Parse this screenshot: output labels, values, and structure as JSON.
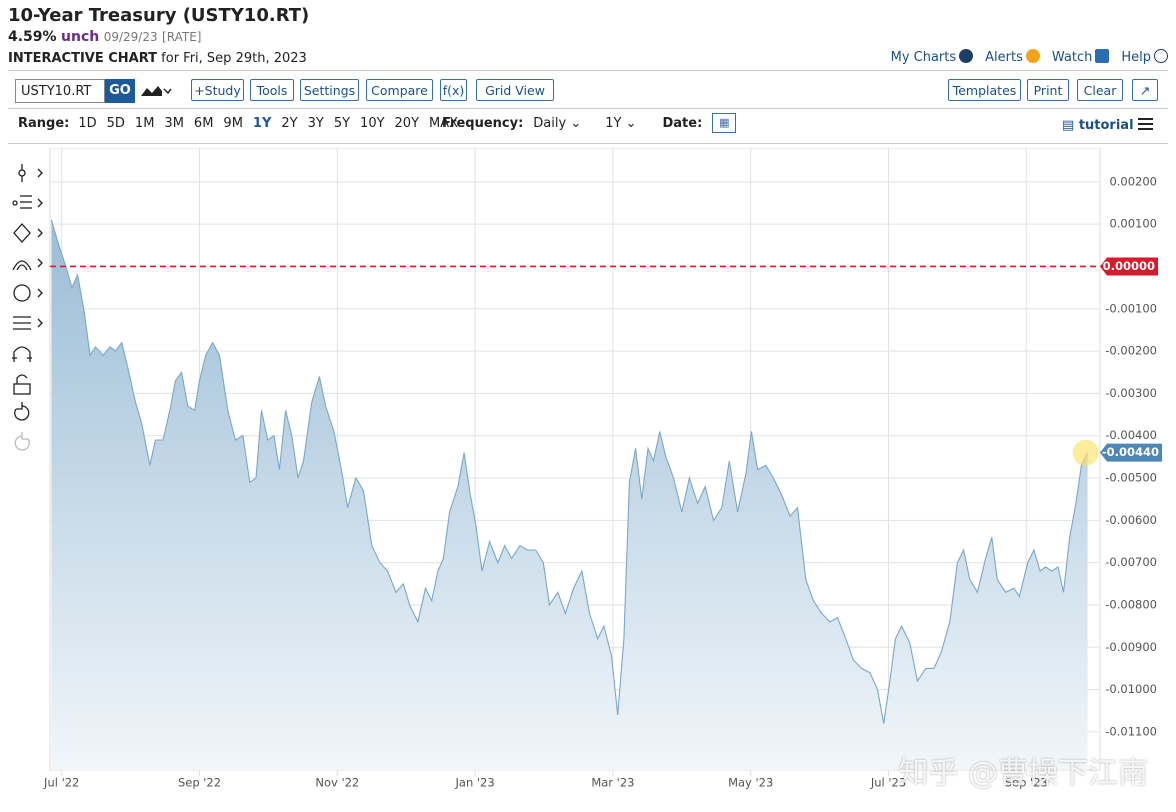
{
  "header": {
    "title": "10-Year Treasury (USTY10.RT)",
    "price": "4.59%",
    "change": "unch",
    "date": "09/29/23",
    "source": "[RATE]",
    "chart_label": "INTERACTIVE CHART",
    "for_date": "for Fri, Sep 29th, 2023",
    "links": [
      "My Charts",
      "Alerts",
      "Watch",
      "Help"
    ]
  },
  "toolbar": {
    "symbol": "USTY10.RT",
    "go": "GO",
    "buttons": [
      "+Study",
      "Tools",
      "Settings",
      "Compare",
      "f(x)",
      "Grid View"
    ],
    "right_buttons": [
      "Templates",
      "Print",
      "Clear"
    ],
    "range_label": "Range:",
    "ranges": [
      "1D",
      "5D",
      "1M",
      "3M",
      "6M",
      "9M",
      "1Y",
      "2Y",
      "3Y",
      "5Y",
      "10Y",
      "20Y",
      "MAX"
    ],
    "frequency_label": "Frequency:",
    "frequency": "Daily",
    "period": "1Y",
    "date_label": "Date:",
    "tutorial": "tutorial"
  },
  "watermark": "知乎 @曹操下江南",
  "chart_data": {
    "type": "area",
    "color": "#7aa7c9",
    "grid": true,
    "xlim": [
      -0.17,
      15.07
    ],
    "ylim": [
      -0.0119,
      0.0028
    ],
    "xticks": [
      {
        "value": 0,
        "label": "Jul '22"
      },
      {
        "value": 2,
        "label": "Sep '22"
      },
      {
        "value": 4,
        "label": "Nov '22"
      },
      {
        "value": 6,
        "label": "Jan '23"
      },
      {
        "value": 8,
        "label": "Mar '23"
      },
      {
        "value": 10,
        "label": "May '23"
      },
      {
        "value": 12,
        "label": "Jul '23"
      },
      {
        "value": 14,
        "label": "Sep '23"
      }
    ],
    "yticks": [
      {
        "value": 0.002,
        "label": "0.00200"
      },
      {
        "value": 0.001,
        "label": "0.00100"
      },
      {
        "value": -0.001,
        "label": "-0.00100"
      },
      {
        "value": -0.002,
        "label": "-0.00200"
      },
      {
        "value": -0.003,
        "label": "-0.00300"
      },
      {
        "value": -0.004,
        "label": "-0.00400"
      },
      {
        "value": -0.005,
        "label": "-0.00500"
      },
      {
        "value": -0.006,
        "label": "-0.00600"
      },
      {
        "value": -0.007,
        "label": "-0.00700"
      },
      {
        "value": -0.008,
        "label": "-0.00800"
      },
      {
        "value": -0.009,
        "label": "-0.00900"
      },
      {
        "value": -0.01,
        "label": "-0.01000"
      },
      {
        "value": -0.011,
        "label": "-0.01100"
      }
    ],
    "reference_line": {
      "value": 0,
      "label": "0.00000"
    },
    "last_label": {
      "value": -0.0044,
      "label": "-0.00440"
    },
    "x": [
      -0.15,
      -0.06,
      0.06,
      0.15,
      0.23,
      0.33,
      0.41,
      0.49,
      0.6,
      0.7,
      0.78,
      0.87,
      0.96,
      1.07,
      1.16,
      1.28,
      1.36,
      1.47,
      1.57,
      1.65,
      1.74,
      1.83,
      1.93,
      2.0,
      2.09,
      2.19,
      2.29,
      2.41,
      2.52,
      2.63,
      2.73,
      2.82,
      2.9,
      2.99,
      3.08,
      3.16,
      3.25,
      3.34,
      3.43,
      3.51,
      3.63,
      3.74,
      3.83,
      3.95,
      4.06,
      4.15,
      4.27,
      4.38,
      4.5,
      4.62,
      4.73,
      4.85,
      4.96,
      5.05,
      5.17,
      5.28,
      5.37,
      5.46,
      5.54,
      5.63,
      5.75,
      5.84,
      5.92,
      6.01,
      6.1,
      6.21,
      6.33,
      6.43,
      6.53,
      6.65,
      6.76,
      6.88,
      6.99,
      7.08,
      7.2,
      7.31,
      7.43,
      7.55,
      7.66,
      7.78,
      7.87,
      7.98,
      8.07,
      8.16,
      8.24,
      8.33,
      8.42,
      8.51,
      8.59,
      8.68,
      8.77,
      8.88,
      9.0,
      9.11,
      9.23,
      9.34,
      9.46,
      9.58,
      9.69,
      9.81,
      9.93,
      10.01,
      10.1,
      10.22,
      10.33,
      10.45,
      10.57,
      10.68,
      10.8,
      10.91,
      11.03,
      11.15,
      11.26,
      11.38,
      11.49,
      11.61,
      11.73,
      11.84,
      11.93,
      12.02,
      12.1,
      12.19,
      12.31,
      12.42,
      12.54,
      12.66,
      12.77,
      12.89,
      13.0,
      13.09,
      13.18,
      13.29,
      13.41,
      13.5,
      13.58,
      13.7,
      13.82,
      13.9,
      14.02,
      14.11,
      14.2,
      14.28,
      14.37,
      14.46,
      14.54,
      14.63,
      14.72,
      14.8,
      14.89
    ],
    "values": [
      0.0011,
      0.0006,
      0.0,
      -0.0005,
      -0.0002,
      -0.0011,
      -0.0021,
      -0.0019,
      -0.0021,
      -0.0019,
      -0.002,
      -0.0018,
      -0.0024,
      -0.0032,
      -0.0037,
      -0.0047,
      -0.0041,
      -0.0041,
      -0.0034,
      -0.0027,
      -0.0025,
      -0.0033,
      -0.0034,
      -0.0027,
      -0.0021,
      -0.0018,
      -0.0021,
      -0.0034,
      -0.0041,
      -0.004,
      -0.0051,
      -0.005,
      -0.0034,
      -0.0041,
      -0.004,
      -0.0048,
      -0.0034,
      -0.004,
      -0.005,
      -0.0046,
      -0.0032,
      -0.0026,
      -0.0033,
      -0.0039,
      -0.0048,
      -0.0057,
      -0.005,
      -0.0053,
      -0.0066,
      -0.007,
      -0.0072,
      -0.0077,
      -0.0075,
      -0.008,
      -0.0084,
      -0.0076,
      -0.0079,
      -0.0072,
      -0.0069,
      -0.0058,
      -0.0052,
      -0.0044,
      -0.0053,
      -0.0061,
      -0.0072,
      -0.0065,
      -0.007,
      -0.0066,
      -0.0069,
      -0.0066,
      -0.0067,
      -0.0067,
      -0.007,
      -0.008,
      -0.0077,
      -0.0082,
      -0.0076,
      -0.0072,
      -0.0082,
      -0.0088,
      -0.0085,
      -0.0092,
      -0.0106,
      -0.0088,
      -0.0051,
      -0.0043,
      -0.0055,
      -0.0043,
      -0.0046,
      -0.0039,
      -0.0045,
      -0.005,
      -0.0058,
      -0.005,
      -0.0056,
      -0.0052,
      -0.006,
      -0.0057,
      -0.0046,
      -0.0058,
      -0.0049,
      -0.0039,
      -0.0048,
      -0.0047,
      -0.005,
      -0.0054,
      -0.0059,
      -0.0057,
      -0.0074,
      -0.0079,
      -0.0082,
      -0.0084,
      -0.0083,
      -0.0088,
      -0.0093,
      -0.0095,
      -0.0096,
      -0.01,
      -0.0108,
      -0.0098,
      -0.0088,
      -0.0085,
      -0.0089,
      -0.0098,
      -0.0095,
      -0.0095,
      -0.0091,
      -0.0084,
      -0.007,
      -0.0067,
      -0.0074,
      -0.0077,
      -0.0069,
      -0.0064,
      -0.0074,
      -0.0077,
      -0.0076,
      -0.0078,
      -0.007,
      -0.0067,
      -0.0072,
      -0.0071,
      -0.0072,
      -0.0071,
      -0.0077,
      -0.0064,
      -0.0056,
      -0.0047,
      -0.0044
    ]
  }
}
